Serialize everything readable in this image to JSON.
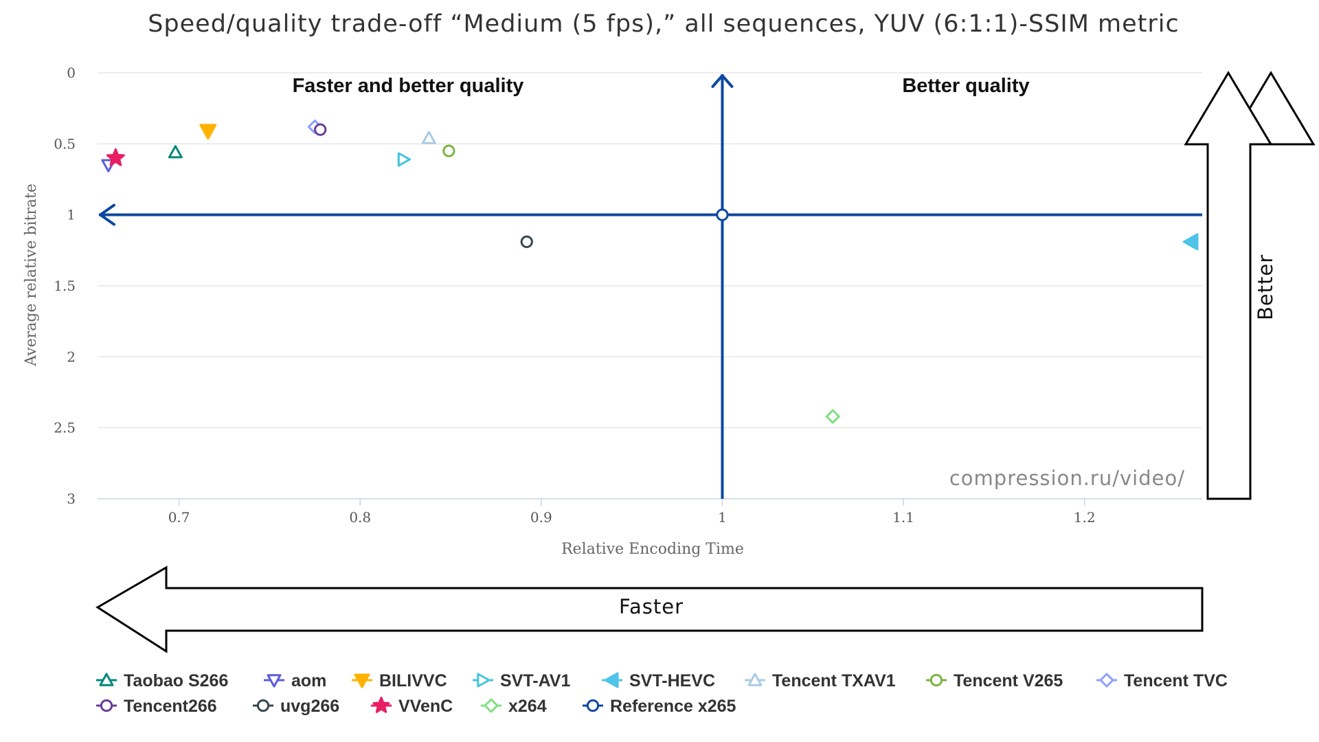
{
  "chart_data": {
    "type": "scatter",
    "title": "Speed/quality trade-off “Medium (5 fps),” all sequences, YUV (6:1:1)-SSIM metric",
    "xlabel": "Relative Encoding Time",
    "ylabel": "Average relative bitrate",
    "xlim": [
      0.655,
      1.265
    ],
    "ylim": [
      0,
      3
    ],
    "y_reversed": true,
    "x_ticks": [
      "0.7",
      "0.8",
      "0.9",
      "1",
      "1.1",
      "1.2"
    ],
    "y_ticks": [
      "0",
      "0.5",
      "1",
      "1.5",
      "2",
      "2.5",
      "3"
    ],
    "grid": "horizontal",
    "legend_position": "bottom",
    "reference_lines": {
      "x": 1,
      "y": 1,
      "color": "#0d47a1"
    },
    "annotations": {
      "top_left": "Faster and better quality",
      "top_right": "Better quality",
      "watermark": "compression.ru/video/",
      "left_arrow": "Faster",
      "up_arrow": "Better"
    },
    "series": [
      {
        "name": "Taobao S266",
        "marker": "triangle-up",
        "color": "#00897b",
        "filled": false,
        "x": 0.698,
        "y": 0.56
      },
      {
        "name": "aom",
        "marker": "triangle-down",
        "color": "#5c5ce0",
        "filled": false,
        "x": 0.661,
        "y": 0.65
      },
      {
        "name": "BILIVVC",
        "marker": "triangle-down",
        "color": "#ffb300",
        "filled": true,
        "x": 0.716,
        "y": 0.41
      },
      {
        "name": "SVT-AV1",
        "marker": "triangle-right",
        "color": "#42c4dd",
        "filled": false,
        "x": 0.824,
        "y": 0.61
      },
      {
        "name": "SVT-HEVC",
        "marker": "triangle-left",
        "color": "#4fc3e8",
        "filled": true,
        "x": 1.259,
        "y": 1.19
      },
      {
        "name": "Tencent TXAV1",
        "marker": "triangle-up",
        "color": "#a9cbe4",
        "filled": false,
        "x": 0.838,
        "y": 0.46
      },
      {
        "name": "Tencent V265",
        "marker": "circle",
        "color": "#7cb342",
        "filled": false,
        "x": 0.849,
        "y": 0.55
      },
      {
        "name": "Tencent TVC",
        "marker": "diamond",
        "color": "#8c9eff",
        "filled": false,
        "x": 0.775,
        "y": 0.38
      },
      {
        "name": "Tencent266",
        "marker": "circle",
        "color": "#6a3d9a",
        "filled": false,
        "x": 0.778,
        "y": 0.4
      },
      {
        "name": "uvg266",
        "marker": "circle",
        "color": "#37474f",
        "filled": false,
        "x": 0.892,
        "y": 1.19
      },
      {
        "name": "VVenC",
        "marker": "star",
        "color": "#e91e63",
        "filled": true,
        "x": 0.665,
        "y": 0.6
      },
      {
        "name": "x264",
        "marker": "diamond",
        "color": "#7ee07e",
        "filled": false,
        "x": 1.061,
        "y": 2.42
      },
      {
        "name": "Reference x265",
        "marker": "circle",
        "color": "#0d47a1",
        "filled": false,
        "x": 1.0,
        "y": 1.0
      }
    ]
  }
}
